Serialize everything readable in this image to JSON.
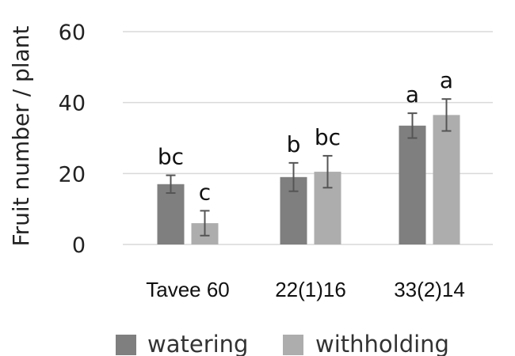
{
  "chart_data": {
    "type": "bar",
    "title": "",
    "xlabel": "",
    "ylabel": "Fruit number / plant",
    "ylim": [
      0,
      60
    ],
    "yticks": [
      0,
      20,
      40,
      60
    ],
    "grid": true,
    "legend_position": "bottom",
    "categories": [
      "Tavee 60",
      "22(1)16",
      "33(2)14"
    ],
    "series": [
      {
        "name": "watering",
        "color": "#7f7f7f",
        "values": [
          17,
          19,
          33.5
        ],
        "errors": [
          2.5,
          4,
          3.5
        ],
        "letters": [
          "bc",
          "b",
          "a"
        ]
      },
      {
        "name": "withholding",
        "color": "#adadad",
        "values": [
          6,
          20.5,
          36.5
        ],
        "errors": [
          3.5,
          4.5,
          4.5
        ],
        "letters": [
          "c",
          "bc",
          "a"
        ]
      }
    ]
  }
}
